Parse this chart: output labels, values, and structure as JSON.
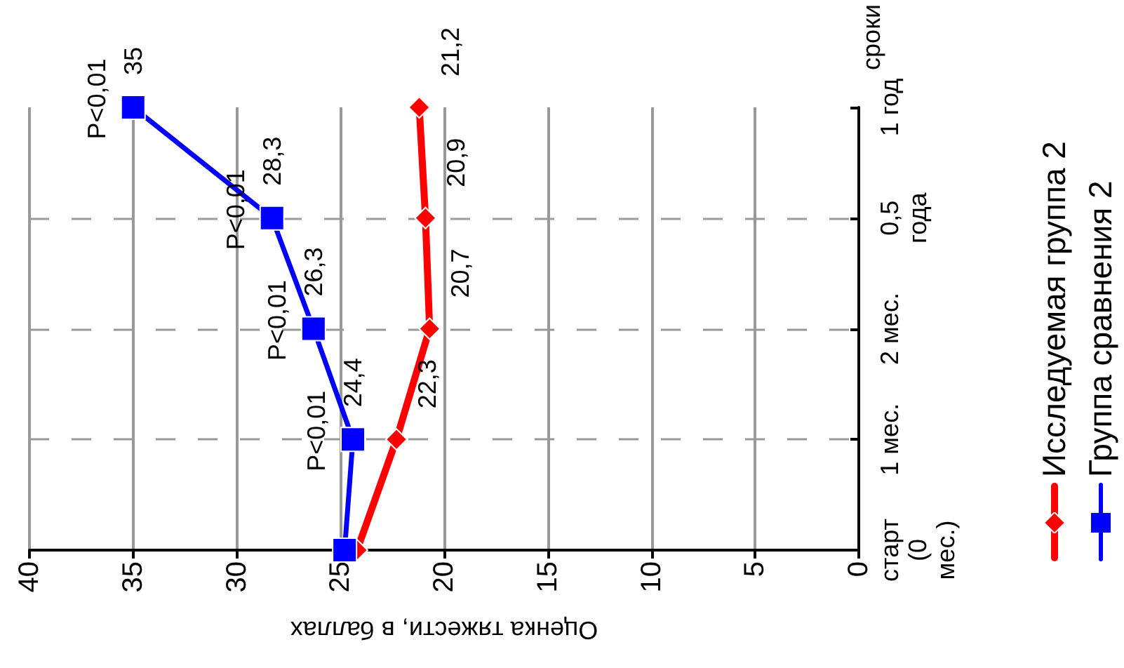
{
  "chart_data": {
    "type": "line",
    "orientation": "horizontal",
    "xlabel": "Оценка тяжести, в баллах",
    "ylabel": "сроки",
    "categories": [
      "1 год",
      "0,5 года",
      "2 мес.",
      "1 мес.",
      "старт (0 мес.)"
    ],
    "series": [
      {
        "name": "Исследуемая группа 2",
        "color": "#ff0000",
        "marker": "diamond",
        "values": [
          21.2,
          20.9,
          20.7,
          22.3,
          24.2
        ],
        "value_labels": [
          "21,2",
          "20,9",
          "20,7",
          "22,3",
          null
        ]
      },
      {
        "name": "Группа сравнения 2",
        "color": "#0000ff",
        "marker": "square",
        "values": [
          35,
          28.3,
          26.3,
          24.4,
          24.8
        ],
        "value_labels": [
          "35",
          "28,3",
          "26,3",
          "24,4",
          null
        ]
      }
    ],
    "annotations": [
      {
        "text": "P<0,01",
        "x": 35,
        "y": "1 год"
      },
      {
        "text": "P<0,01",
        "x": 28.3,
        "y": "0,5 года"
      },
      {
        "text": "P<0,01",
        "x": 26.3,
        "y": "2 мес."
      },
      {
        "text": "P<0,01",
        "x": 24.4,
        "y": "1 мес."
      }
    ],
    "xlim": [
      40,
      0
    ],
    "xticks": [
      40,
      35,
      30,
      25,
      20,
      15,
      10,
      5,
      0
    ],
    "grid": true,
    "legend": "right",
    "line_style": "solid"
  }
}
